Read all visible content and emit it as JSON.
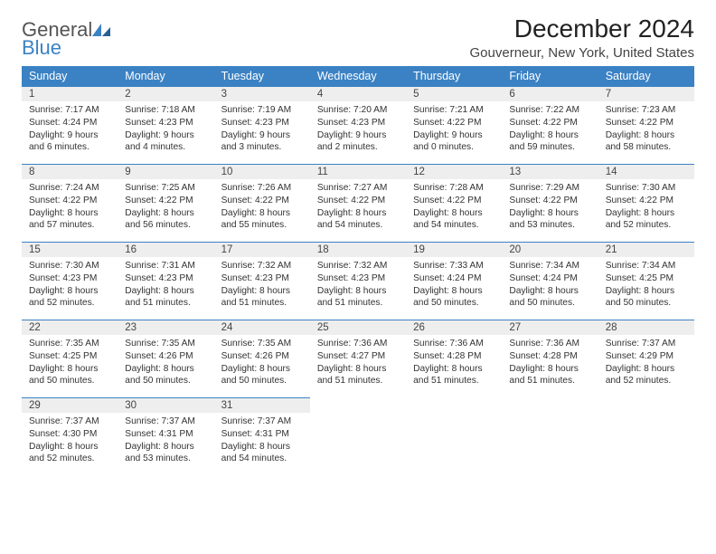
{
  "logo": {
    "textA": "General",
    "textB": "Blue"
  },
  "title": "December 2024",
  "location": "Gouverneur, New York, United States",
  "colors": {
    "header_bg": "#3b82c4",
    "header_fg": "#ffffff",
    "daynum_bg": "#eeeeee",
    "border": "#3b82c4",
    "text": "#333333"
  },
  "daysOfWeek": [
    "Sunday",
    "Monday",
    "Tuesday",
    "Wednesday",
    "Thursday",
    "Friday",
    "Saturday"
  ],
  "weeks": [
    [
      {
        "n": "1",
        "sr": "7:17 AM",
        "ss": "4:24 PM",
        "dl": "9 hours and 6 minutes."
      },
      {
        "n": "2",
        "sr": "7:18 AM",
        "ss": "4:23 PM",
        "dl": "9 hours and 4 minutes."
      },
      {
        "n": "3",
        "sr": "7:19 AM",
        "ss": "4:23 PM",
        "dl": "9 hours and 3 minutes."
      },
      {
        "n": "4",
        "sr": "7:20 AM",
        "ss": "4:23 PM",
        "dl": "9 hours and 2 minutes."
      },
      {
        "n": "5",
        "sr": "7:21 AM",
        "ss": "4:22 PM",
        "dl": "9 hours and 0 minutes."
      },
      {
        "n": "6",
        "sr": "7:22 AM",
        "ss": "4:22 PM",
        "dl": "8 hours and 59 minutes."
      },
      {
        "n": "7",
        "sr": "7:23 AM",
        "ss": "4:22 PM",
        "dl": "8 hours and 58 minutes."
      }
    ],
    [
      {
        "n": "8",
        "sr": "7:24 AM",
        "ss": "4:22 PM",
        "dl": "8 hours and 57 minutes."
      },
      {
        "n": "9",
        "sr": "7:25 AM",
        "ss": "4:22 PM",
        "dl": "8 hours and 56 minutes."
      },
      {
        "n": "10",
        "sr": "7:26 AM",
        "ss": "4:22 PM",
        "dl": "8 hours and 55 minutes."
      },
      {
        "n": "11",
        "sr": "7:27 AM",
        "ss": "4:22 PM",
        "dl": "8 hours and 54 minutes."
      },
      {
        "n": "12",
        "sr": "7:28 AM",
        "ss": "4:22 PM",
        "dl": "8 hours and 54 minutes."
      },
      {
        "n": "13",
        "sr": "7:29 AM",
        "ss": "4:22 PM",
        "dl": "8 hours and 53 minutes."
      },
      {
        "n": "14",
        "sr": "7:30 AM",
        "ss": "4:22 PM",
        "dl": "8 hours and 52 minutes."
      }
    ],
    [
      {
        "n": "15",
        "sr": "7:30 AM",
        "ss": "4:23 PM",
        "dl": "8 hours and 52 minutes."
      },
      {
        "n": "16",
        "sr": "7:31 AM",
        "ss": "4:23 PM",
        "dl": "8 hours and 51 minutes."
      },
      {
        "n": "17",
        "sr": "7:32 AM",
        "ss": "4:23 PM",
        "dl": "8 hours and 51 minutes."
      },
      {
        "n": "18",
        "sr": "7:32 AM",
        "ss": "4:23 PM",
        "dl": "8 hours and 51 minutes."
      },
      {
        "n": "19",
        "sr": "7:33 AM",
        "ss": "4:24 PM",
        "dl": "8 hours and 50 minutes."
      },
      {
        "n": "20",
        "sr": "7:34 AM",
        "ss": "4:24 PM",
        "dl": "8 hours and 50 minutes."
      },
      {
        "n": "21",
        "sr": "7:34 AM",
        "ss": "4:25 PM",
        "dl": "8 hours and 50 minutes."
      }
    ],
    [
      {
        "n": "22",
        "sr": "7:35 AM",
        "ss": "4:25 PM",
        "dl": "8 hours and 50 minutes."
      },
      {
        "n": "23",
        "sr": "7:35 AM",
        "ss": "4:26 PM",
        "dl": "8 hours and 50 minutes."
      },
      {
        "n": "24",
        "sr": "7:35 AM",
        "ss": "4:26 PM",
        "dl": "8 hours and 50 minutes."
      },
      {
        "n": "25",
        "sr": "7:36 AM",
        "ss": "4:27 PM",
        "dl": "8 hours and 51 minutes."
      },
      {
        "n": "26",
        "sr": "7:36 AM",
        "ss": "4:28 PM",
        "dl": "8 hours and 51 minutes."
      },
      {
        "n": "27",
        "sr": "7:36 AM",
        "ss": "4:28 PM",
        "dl": "8 hours and 51 minutes."
      },
      {
        "n": "28",
        "sr": "7:37 AM",
        "ss": "4:29 PM",
        "dl": "8 hours and 52 minutes."
      }
    ],
    [
      {
        "n": "29",
        "sr": "7:37 AM",
        "ss": "4:30 PM",
        "dl": "8 hours and 52 minutes."
      },
      {
        "n": "30",
        "sr": "7:37 AM",
        "ss": "4:31 PM",
        "dl": "8 hours and 53 minutes."
      },
      {
        "n": "31",
        "sr": "7:37 AM",
        "ss": "4:31 PM",
        "dl": "8 hours and 54 minutes."
      },
      null,
      null,
      null,
      null
    ]
  ],
  "labels": {
    "sunrise": "Sunrise: ",
    "sunset": "Sunset: ",
    "daylight": "Daylight: "
  }
}
